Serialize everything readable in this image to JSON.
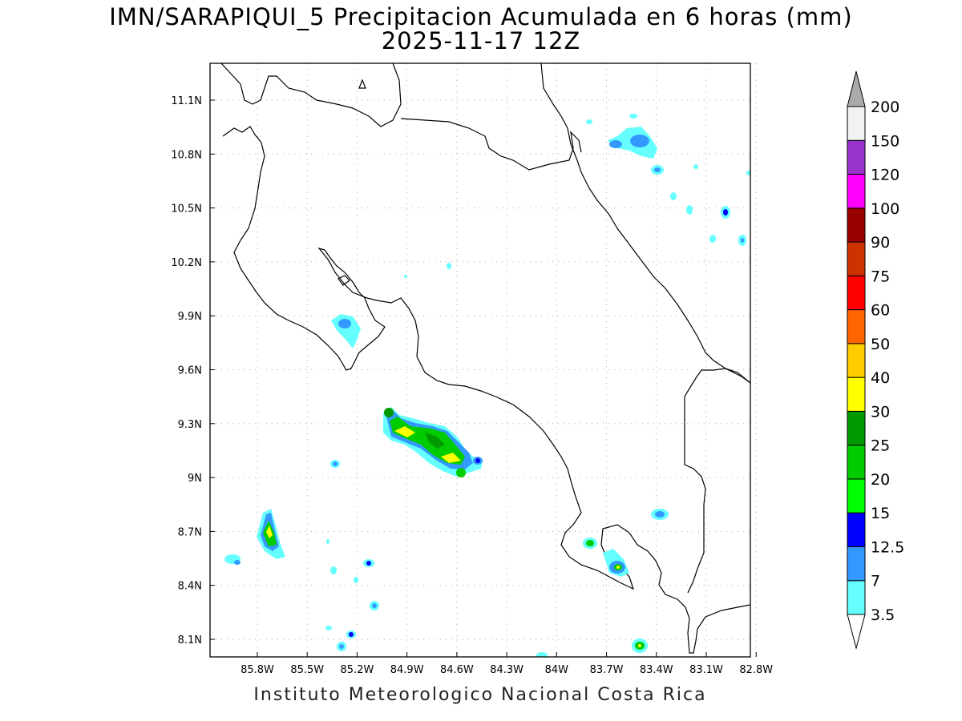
{
  "title": "IMN/SARAPIQUI_5 Precipitacion Acumulada en 6 horas (mm)",
  "subtitle": "2025-11-17 12Z",
  "footer": "Instituto Meteorologico Nacional Costa Rica",
  "map": {
    "lon_range": [
      -86.1,
      -83.1
    ],
    "lat_range": [
      8.0,
      11.3
    ],
    "lon_ticks": [
      {
        "v": -85.8,
        "label": "85.8W"
      },
      {
        "v": -85.5,
        "label": "85.5W"
      },
      {
        "v": -85.2,
        "label": "85.2W"
      },
      {
        "v": -84.9,
        "label": "84.9W"
      },
      {
        "v": -84.6,
        "label": "84.6W"
      },
      {
        "v": -84.3,
        "label": "84.3W"
      },
      {
        "v": -84.0,
        "label": "84W"
      },
      {
        "v": -83.7,
        "label": "83.7W"
      },
      {
        "v": -83.4,
        "label": "83.4W"
      },
      {
        "v": -83.1,
        "label": "83.1W"
      },
      {
        "v": -82.8,
        "label": "82.8W"
      }
    ],
    "lat_ticks": [
      {
        "v": 8.1,
        "label": "8.1N"
      },
      {
        "v": 8.4,
        "label": "8.4N"
      },
      {
        "v": 8.7,
        "label": "8.7N"
      },
      {
        "v": 9.0,
        "label": "9N"
      },
      {
        "v": 9.3,
        "label": "9.3N"
      },
      {
        "v": 9.6,
        "label": "9.6N"
      },
      {
        "v": 9.9,
        "label": "9.9N"
      },
      {
        "v": 10.2,
        "label": "10.2N"
      },
      {
        "v": 10.5,
        "label": "10.5N"
      },
      {
        "v": 10.8,
        "label": "10.8N"
      },
      {
        "v": 11.1,
        "label": "11.1N"
      }
    ],
    "grid": true
  },
  "colorbar": {
    "levels": [
      "3.5",
      "7",
      "12.5",
      "15",
      "20",
      "25",
      "30",
      "40",
      "50",
      "60",
      "75",
      "90",
      "100",
      "120",
      "150",
      "200"
    ],
    "colors": [
      "#66ffff",
      "#3399ff",
      "#0000ff",
      "#00ff00",
      "#00cc00",
      "#009900",
      "#ffff00",
      "#ffcc00",
      "#ff6600",
      "#ff0000",
      "#cc3300",
      "#990000",
      "#ff00ff",
      "#9933cc",
      "#f2f2f2",
      "#aaaaaa"
    ]
  }
}
